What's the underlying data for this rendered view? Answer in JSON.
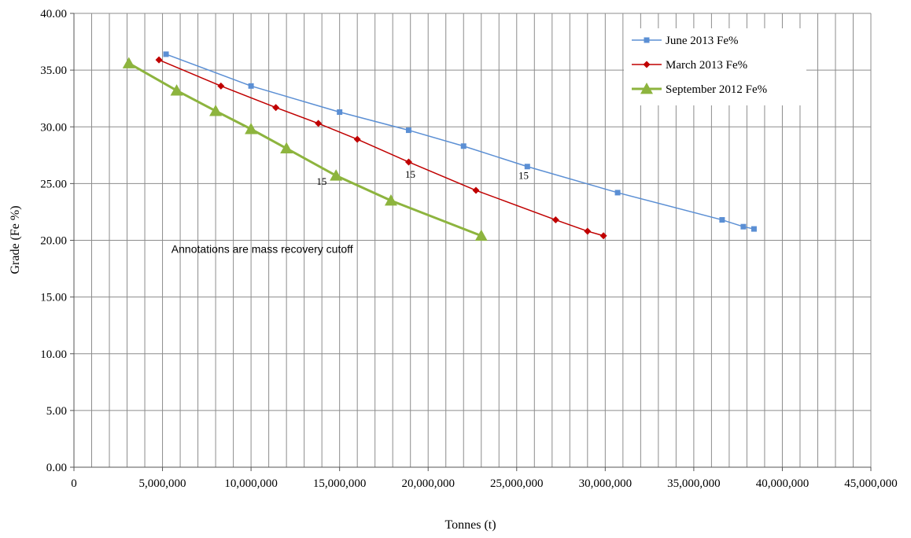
{
  "chart_data": {
    "type": "line",
    "xlabel": "Tonnes (t)",
    "ylabel": "Grade (Fe %)",
    "xlim": [
      0,
      45000000
    ],
    "ylim": [
      0,
      40
    ],
    "grid": true,
    "legend_position": "top-right",
    "x_ticks": [
      "0",
      "5,000,000",
      "10,000,000",
      "15,000,000",
      "20,000,000",
      "25,000,000",
      "30,000,000",
      "35,000,000",
      "40,000,000",
      "45,000,000"
    ],
    "y_ticks": [
      "0.00",
      "5.00",
      "10.00",
      "15.00",
      "20.00",
      "25.00",
      "30.00",
      "35.00",
      "40.00"
    ],
    "series": [
      {
        "name": "June 2013 Fe%",
        "color": "#5B8FD4",
        "marker": "square",
        "x": [
          5200000,
          10000000,
          15000000,
          18900000,
          22000000,
          25600000,
          30700000,
          36600000,
          37800000,
          38400000
        ],
        "y": [
          36.4,
          33.6,
          31.3,
          29.7,
          28.3,
          26.5,
          24.2,
          21.8,
          21.2,
          21.0
        ]
      },
      {
        "name": "March 2013 Fe%",
        "color": "#C00000",
        "marker": "diamond",
        "x": [
          4800000,
          8300000,
          11400000,
          13800000,
          16000000,
          18900000,
          22700000,
          27200000,
          29000000,
          29900000
        ],
        "y": [
          35.9,
          33.6,
          31.7,
          30.3,
          28.9,
          26.9,
          24.4,
          21.8,
          20.8,
          20.4
        ]
      },
      {
        "name": "September 2012 Fe%",
        "color": "#8DB43E",
        "marker": "triangle",
        "x": [
          3100000,
          5800000,
          8000000,
          10000000,
          12000000,
          14800000,
          17900000,
          23000000
        ],
        "y": [
          35.6,
          33.2,
          31.4,
          29.8,
          28.1,
          25.7,
          23.5,
          20.4
        ]
      }
    ],
    "annotations": [
      {
        "text": "15",
        "x": 13700000,
        "y": 24.9
      },
      {
        "text": "15",
        "x": 18700000,
        "y": 25.5
      },
      {
        "text": "15",
        "x": 25100000,
        "y": 25.4
      },
      {
        "text": "Annotations are mass recovery cutoff",
        "x": 5500000,
        "y": 18.9
      }
    ]
  }
}
